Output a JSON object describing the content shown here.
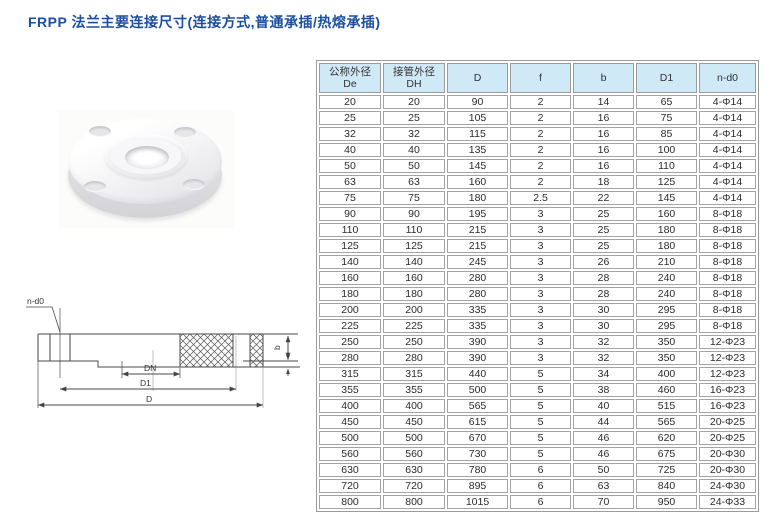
{
  "title": "FRPP 法兰主要连接尺寸(连接方式,普通承插/热熔承插)",
  "colors": {
    "title_blue": "#1c4fa0",
    "table_header_bg": "#cfe9f6",
    "table_border": "#9b9b9b",
    "text": "#333333"
  },
  "diagram": {
    "labels": {
      "bolt_holes": "n-d0",
      "dn": "DN",
      "d1": "D1",
      "d": "D",
      "thickness_b": "b"
    }
  },
  "table": {
    "headers": [
      {
        "line1": "公称外径",
        "line2": "De"
      },
      {
        "line1": "接管外径",
        "line2": "DH"
      },
      {
        "line1": "D",
        "line2": ""
      },
      {
        "line1": "f",
        "line2": ""
      },
      {
        "line1": "b",
        "line2": ""
      },
      {
        "line1": "D1",
        "line2": ""
      },
      {
        "line1": "n-d0",
        "line2": ""
      }
    ],
    "rows": [
      [
        "20",
        "20",
        "90",
        "2",
        "14",
        "65",
        "4-Φ14"
      ],
      [
        "25",
        "25",
        "105",
        "2",
        "16",
        "75",
        "4-Φ14"
      ],
      [
        "32",
        "32",
        "115",
        "2",
        "16",
        "85",
        "4-Φ14"
      ],
      [
        "40",
        "40",
        "135",
        "2",
        "16",
        "100",
        "4-Φ14"
      ],
      [
        "50",
        "50",
        "145",
        "2",
        "16",
        "110",
        "4-Φ14"
      ],
      [
        "63",
        "63",
        "160",
        "2",
        "18",
        "125",
        "4-Φ14"
      ],
      [
        "75",
        "75",
        "180",
        "2.5",
        "22",
        "145",
        "4-Φ14"
      ],
      [
        "90",
        "90",
        "195",
        "3",
        "25",
        "160",
        "8-Φ18"
      ],
      [
        "110",
        "110",
        "215",
        "3",
        "25",
        "180",
        "8-Φ18"
      ],
      [
        "125",
        "125",
        "215",
        "3",
        "25",
        "180",
        "8-Φ18"
      ],
      [
        "140",
        "140",
        "245",
        "3",
        "26",
        "210",
        "8-Φ18"
      ],
      [
        "160",
        "160",
        "280",
        "3",
        "28",
        "240",
        "8-Φ18"
      ],
      [
        "180",
        "180",
        "280",
        "3",
        "28",
        "240",
        "8-Φ18"
      ],
      [
        "200",
        "200",
        "335",
        "3",
        "30",
        "295",
        "8-Φ18"
      ],
      [
        "225",
        "225",
        "335",
        "3",
        "30",
        "295",
        "8-Φ18"
      ],
      [
        "250",
        "250",
        "390",
        "3",
        "32",
        "350",
        "12-Φ23"
      ],
      [
        "280",
        "280",
        "390",
        "3",
        "32",
        "350",
        "12-Φ23"
      ],
      [
        "315",
        "315",
        "440",
        "5",
        "34",
        "400",
        "12-Φ23"
      ],
      [
        "355",
        "355",
        "500",
        "5",
        "38",
        "460",
        "16-Φ23"
      ],
      [
        "400",
        "400",
        "565",
        "5",
        "40",
        "515",
        "16-Φ23"
      ],
      [
        "450",
        "450",
        "615",
        "5",
        "44",
        "565",
        "20-Φ25"
      ],
      [
        "500",
        "500",
        "670",
        "5",
        "46",
        "620",
        "20-Φ25"
      ],
      [
        "560",
        "560",
        "730",
        "5",
        "46",
        "675",
        "20-Φ30"
      ],
      [
        "630",
        "630",
        "780",
        "6",
        "50",
        "725",
        "20-Φ30"
      ],
      [
        "720",
        "720",
        "895",
        "6",
        "63",
        "840",
        "24-Φ30"
      ],
      [
        "800",
        "800",
        "1015",
        "6",
        "70",
        "950",
        "24-Φ33"
      ]
    ]
  }
}
